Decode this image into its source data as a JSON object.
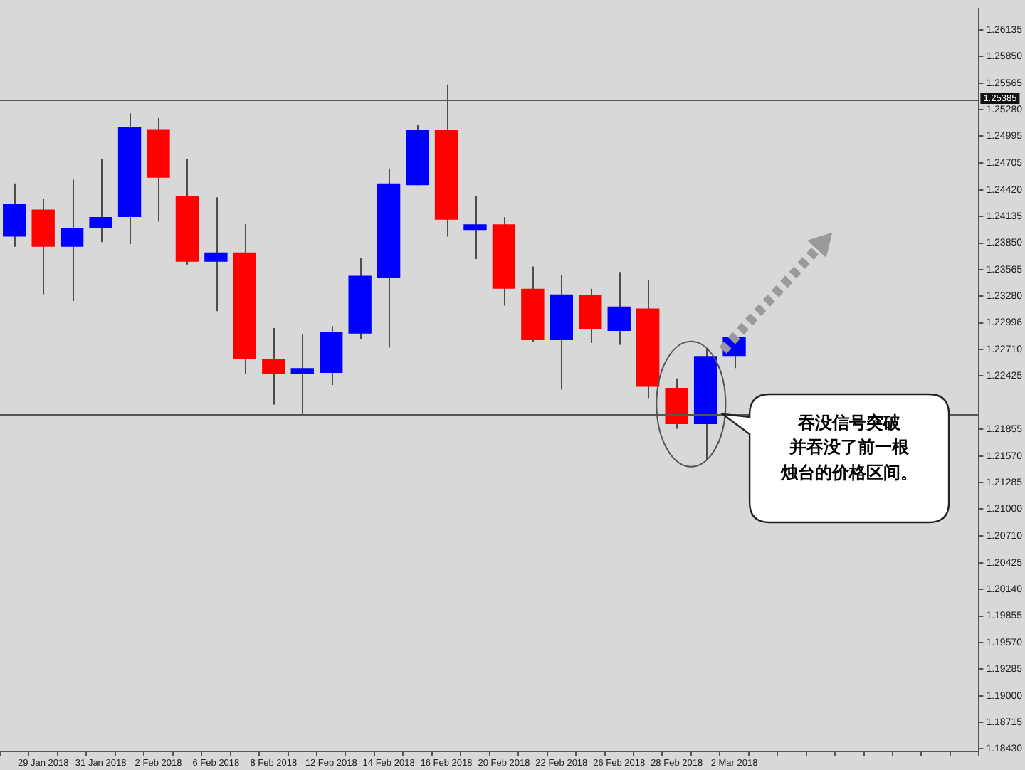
{
  "chart_data": {
    "type": "candlestick",
    "categories": [
      null,
      "29 Jan 2018",
      null,
      "31 Jan 2018",
      null,
      "2 Feb 2018",
      null,
      "6 Feb 2018",
      null,
      "8 Feb 2018",
      null,
      "12 Feb 2018",
      null,
      "14 Feb 2018",
      null,
      "16 Feb 2018",
      null,
      "20 Feb 2018",
      null,
      "22 Feb 2018",
      null,
      "26 Feb 2018",
      null,
      "28 Feb 2018",
      null,
      "2 Mar 2018",
      null,
      null,
      null,
      null,
      null,
      null,
      null,
      null
    ],
    "ohlc": [
      [
        1.2392,
        1.2449,
        1.2381,
        1.2427
      ],
      [
        1.2421,
        1.2432,
        1.233,
        1.2381
      ],
      [
        1.2381,
        1.2453,
        1.2323,
        1.2401
      ],
      [
        1.2401,
        1.2475,
        1.2386,
        1.2413
      ],
      [
        1.2413,
        1.2524,
        1.2384,
        1.2509
      ],
      [
        1.2507,
        1.2519,
        1.2408,
        1.2455
      ],
      [
        1.2435,
        1.2475,
        1.2362,
        1.2365
      ],
      [
        1.2365,
        1.2434,
        1.2312,
        1.2375
      ],
      [
        1.2375,
        1.2405,
        1.2245,
        1.2261
      ],
      [
        1.2261,
        1.2294,
        1.2212,
        1.2245
      ],
      [
        1.2245,
        1.2287,
        1.2201,
        1.2251
      ],
      [
        1.2246,
        1.2296,
        1.2233,
        1.229
      ],
      [
        1.2288,
        1.2369,
        1.2282,
        1.235
      ],
      [
        1.2348,
        1.2465,
        1.2273,
        1.2449
      ],
      [
        1.2447,
        1.2512,
        1.2447,
        1.2506
      ],
      [
        1.2506,
        1.2555,
        1.2392,
        1.241
      ],
      [
        1.2399,
        1.2435,
        1.2368,
        1.2405
      ],
      [
        1.2405,
        1.2413,
        1.2318,
        1.2336
      ],
      [
        1.2336,
        1.236,
        1.2279,
        1.2281
      ],
      [
        1.2281,
        1.2351,
        1.2228,
        1.233
      ],
      [
        1.2329,
        1.2336,
        1.2278,
        1.2293
      ],
      [
        1.2291,
        1.2354,
        1.2276,
        1.2317
      ],
      [
        1.2315,
        1.2345,
        1.2219,
        1.2231
      ],
      [
        1.223,
        1.224,
        1.2186,
        1.2191
      ],
      [
        1.2191,
        1.2272,
        1.2153,
        1.2264
      ],
      [
        1.2264,
        1.2286,
        1.2251,
        1.2284
      ],
      null,
      null,
      null,
      null,
      null,
      null,
      null,
      null
    ],
    "colors": [
      "#0000ff",
      "#ff0000",
      "#0000ff",
      "#0000ff",
      "#0000ff",
      "#ff0000",
      "#ff0000",
      "#0000ff",
      "#ff0000",
      "#ff0000",
      "#0000ff",
      "#0000ff",
      "#0000ff",
      "#0000ff",
      "#0000ff",
      "#ff0000",
      "#0000ff",
      "#ff0000",
      "#ff0000",
      "#0000ff",
      "#ff0000",
      "#0000ff",
      "#ff0000",
      "#ff0000",
      "#0000ff",
      "#0000ff",
      null,
      null,
      null,
      null,
      null,
      null,
      null,
      null
    ],
    "ylim": [
      1.184,
      1.2636
    ],
    "yticks": [
      1.26135,
      {
        "value": 1.2585,
        "label": "1.25850"
      },
      1.25565,
      {
        "value": 1.2528,
        "label": "1.25280"
      },
      1.24995,
      1.24705,
      {
        "value": 1.2442,
        "label": "1.24420"
      },
      1.24135,
      {
        "value": 1.2385,
        "label": "1.23850"
      },
      1.23565,
      {
        "value": 1.2328,
        "label": "1.23280"
      },
      1.22996,
      {
        "value": 1.2271,
        "label": "1.22710"
      },
      1.22425,
      1.21855,
      {
        "value": 1.2157,
        "label": "1.21570"
      },
      1.21285,
      {
        "value": 1.21,
        "label": "1.21000"
      },
      {
        "value": 1.2071,
        "label": "1.20710"
      },
      1.20425,
      {
        "value": 1.2014,
        "label": "1.20140"
      },
      1.19855,
      {
        "value": 1.1957,
        "label": "1.19570"
      },
      1.19285,
      {
        "value": 1.19,
        "label": "1.19000"
      },
      1.18715,
      {
        "value": 1.1843,
        "label": "1.18430"
      }
    ],
    "ref_lines": [
      {
        "axis": "y",
        "value": 1.25385,
        "label": "1.25385",
        "color": "#555555"
      },
      {
        "axis": "y",
        "value": 1.2202,
        "color": "#555555"
      }
    ],
    "annotations": [
      "吞没信号突破",
      "并吞没了前一根",
      "烛台的价格区间。"
    ]
  }
}
